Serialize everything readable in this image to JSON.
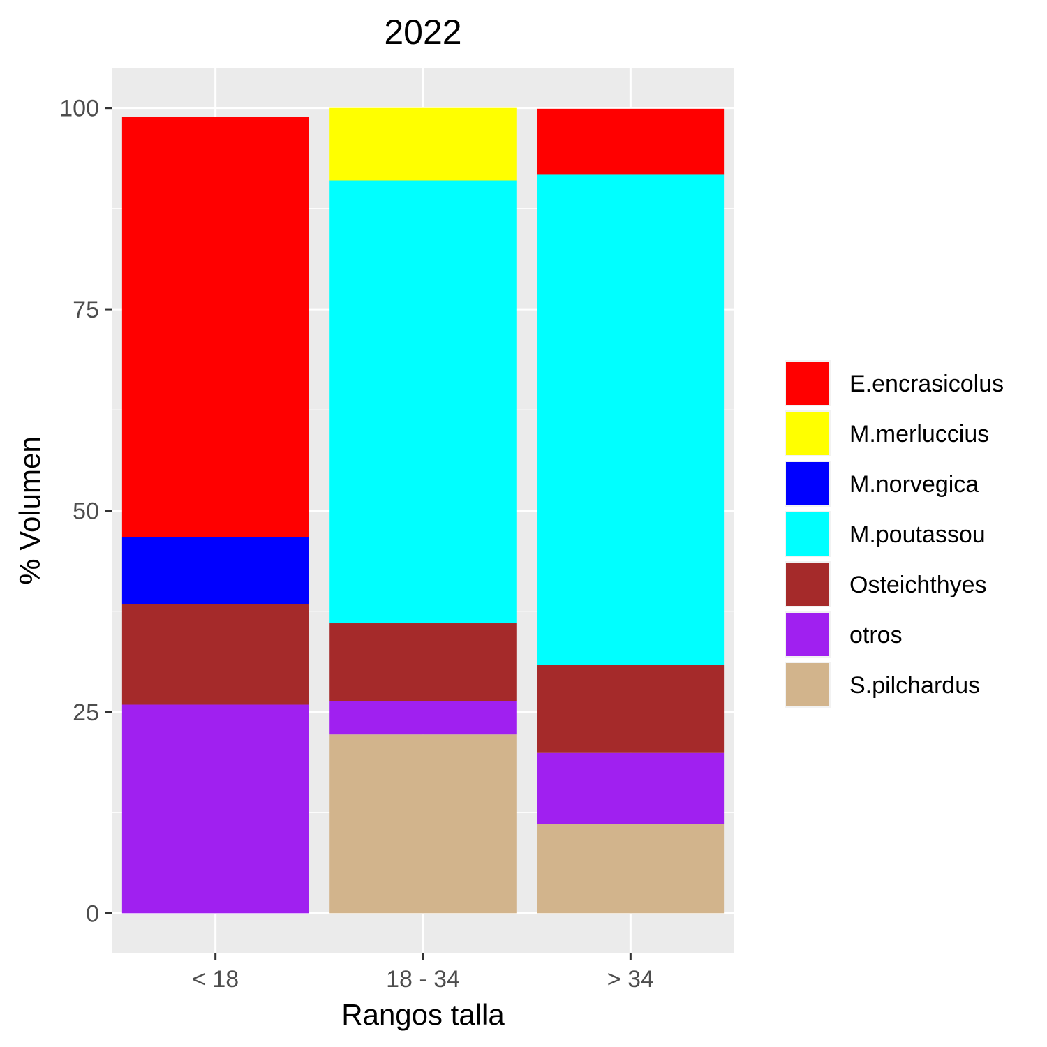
{
  "chart_data": {
    "type": "bar",
    "stacked": true,
    "title": "2022",
    "xlabel": "Rangos talla",
    "ylabel": "% Volumen",
    "categories": [
      "< 18",
      "18 - 34",
      "> 34"
    ],
    "ylim": [
      -5,
      105
    ],
    "yticks": [
      0,
      25,
      50,
      75,
      100
    ],
    "grid": true,
    "legend_position": "right",
    "series": [
      {
        "name": "S.pilchardus",
        "color": "#D2B48C",
        "values": [
          0,
          22.2,
          11.1
        ]
      },
      {
        "name": "otros",
        "color": "#A020F0",
        "values": [
          25.9,
          4.1,
          8.8
        ]
      },
      {
        "name": "Osteichthyes",
        "color": "#A52A2A",
        "values": [
          12.5,
          9.7,
          10.9
        ]
      },
      {
        "name": "M.poutassou",
        "color": "#00FFFF",
        "values": [
          0,
          55.0,
          60.9
        ]
      },
      {
        "name": "M.norvegica",
        "color": "#0000FF",
        "values": [
          8.3,
          0,
          0
        ]
      },
      {
        "name": "M.merluccius",
        "color": "#FFFF00",
        "values": [
          0,
          9.0,
          0
        ]
      },
      {
        "name": "E.encrasicolus",
        "color": "#FF0000",
        "values": [
          52.2,
          0,
          8.2
        ]
      }
    ],
    "legend_order": [
      "E.encrasicolus",
      "M.merluccius",
      "M.norvegica",
      "M.poutassou",
      "Osteichthyes",
      "otros",
      "S.pilchardus"
    ]
  }
}
